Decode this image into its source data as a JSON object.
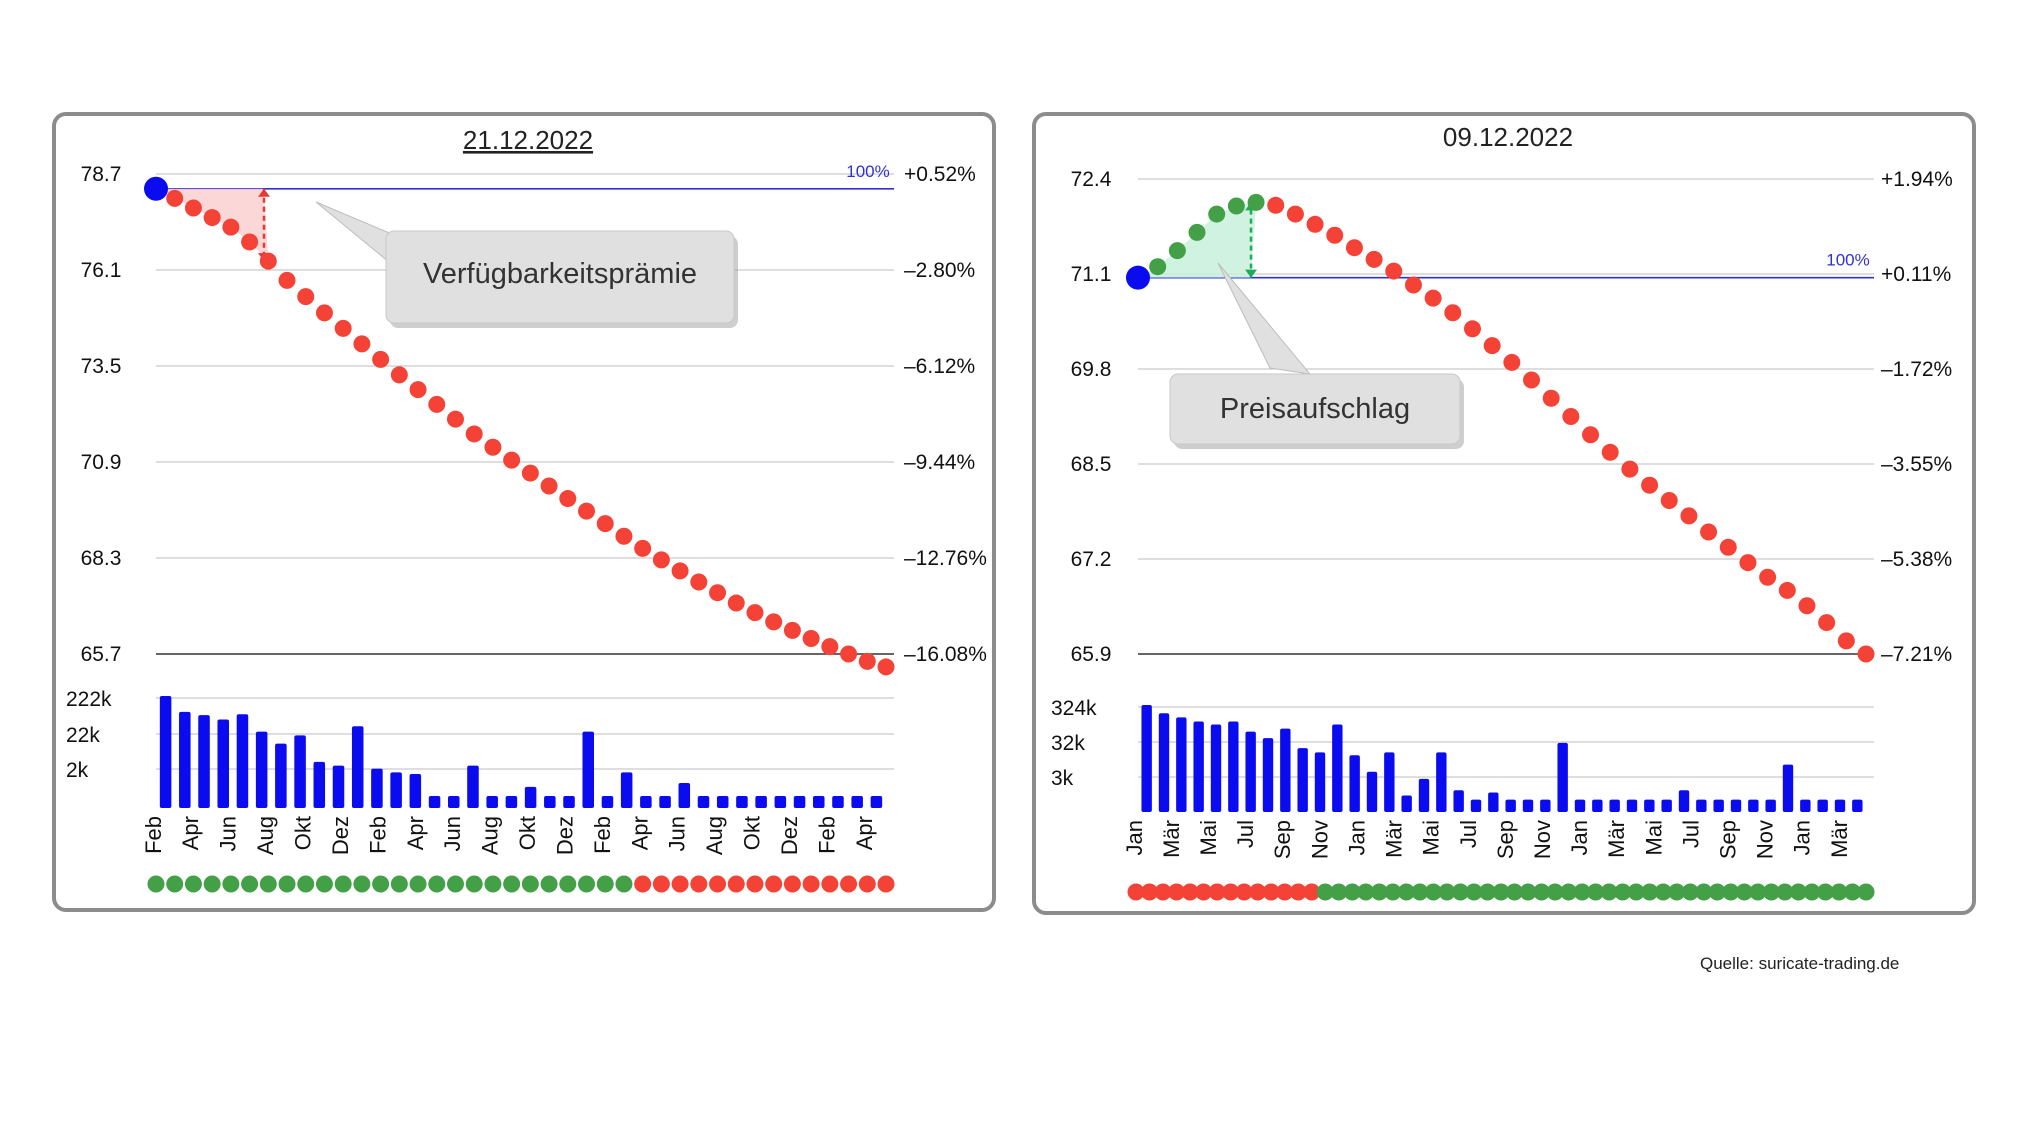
{
  "colors": {
    "dot_red": "#f44336",
    "dot_green": "#43a047",
    "bar_blue": "#0b0bf0",
    "start_blue": "#0b0bf0",
    "line_100": "#3030d8",
    "grid": "#bdbdbd",
    "callout_bg": "#e0e0e0",
    "premium_red_fill": "#fbd0d0",
    "premium_green_fill": "#c8f0dc"
  },
  "source": "Quelle: suricate-trading.de",
  "chart_data": [
    {
      "type": "line",
      "title": "21.12.2022",
      "y_ticks_left": [
        "78.7",
        "76.1",
        "73.5",
        "70.9",
        "68.3",
        "65.7"
      ],
      "y_ticks_left_values": [
        78.7,
        76.1,
        73.5,
        70.9,
        68.3,
        65.7
      ],
      "y_ticks_right": [
        "+0.52%",
        "–2.80%",
        "–6.12%",
        "–9.44%",
        "–12.76%",
        "–16.08%"
      ],
      "ylim": [
        65.7,
        78.7
      ],
      "reference_label": "100%",
      "reference_value": 78.3,
      "annotation": "Verfügbarkeitsprämie",
      "x_tick_labels": [
        "Feb",
        "Apr",
        "Jun",
        "Aug",
        "Okt",
        "Dez",
        "Feb",
        "Apr",
        "Jun",
        "Aug",
        "Okt",
        "Dez",
        "Feb",
        "Apr",
        "Jun",
        "Aug",
        "Okt",
        "Dez",
        "Feb",
        "Apr"
      ],
      "curve": [
        78.3,
        78.04,
        77.78,
        77.52,
        77.26,
        76.86,
        76.34,
        75.82,
        75.38,
        74.94,
        74.52,
        74.1,
        73.68,
        73.26,
        72.86,
        72.46,
        72.06,
        71.66,
        71.3,
        70.95,
        70.6,
        70.25,
        69.91,
        69.57,
        69.23,
        68.89,
        68.56,
        68.25,
        67.95,
        67.65,
        67.36,
        67.08,
        66.82,
        66.57,
        66.34,
        66.12,
        65.9,
        65.7,
        65.5,
        65.35
      ],
      "curve_colors": [
        "blue",
        "red",
        "red",
        "red",
        "red",
        "red",
        "red",
        "red",
        "red",
        "red",
        "red",
        "red",
        "red",
        "red",
        "red",
        "red",
        "red",
        "red",
        "red",
        "red",
        "red",
        "red",
        "red",
        "red",
        "red",
        "red",
        "red",
        "red",
        "red",
        "red",
        "red",
        "red",
        "red",
        "red",
        "red",
        "red",
        "red",
        "red",
        "red",
        "red"
      ],
      "volume_ticks": [
        "222k",
        "22k",
        "2k"
      ],
      "volumes": [
        300000,
        90000,
        70000,
        50000,
        75000,
        20000,
        8000,
        15000,
        2000,
        1500,
        30000,
        1200,
        900,
        800,
        150,
        150,
        1500,
        150,
        150,
        300,
        150,
        150,
        20000,
        150,
        900,
        150,
        150,
        400,
        150,
        150,
        150,
        150,
        150,
        150,
        150,
        150,
        150,
        150
      ],
      "status_dots": [
        "green",
        "green",
        "green",
        "green",
        "green",
        "green",
        "green",
        "green",
        "green",
        "green",
        "green",
        "green",
        "green",
        "green",
        "green",
        "green",
        "green",
        "green",
        "green",
        "green",
        "green",
        "green",
        "green",
        "green",
        "green",
        "green",
        "red",
        "red",
        "red",
        "red",
        "red",
        "red",
        "red",
        "red",
        "red",
        "red",
        "red",
        "red",
        "red",
        "red"
      ]
    },
    {
      "type": "line",
      "title": "09.12.2022",
      "y_ticks_left": [
        "72.4",
        "71.1",
        "69.8",
        "68.5",
        "67.2",
        "65.9"
      ],
      "y_ticks_left_values": [
        72.4,
        71.1,
        69.8,
        68.5,
        67.2,
        65.9
      ],
      "y_ticks_right": [
        "+1.94%",
        "+0.11%",
        "–1.72%",
        "–3.55%",
        "–5.38%",
        "–7.21%"
      ],
      "ylim": [
        65.9,
        72.4
      ],
      "reference_label": "100%",
      "reference_value": 71.05,
      "annotation": "Preisaufschlag",
      "x_tick_labels": [
        "Jan",
        "Mär",
        "Mai",
        "Jul",
        "Sep",
        "Nov",
        "Jan",
        "Mär",
        "Mai",
        "Jul",
        "Sep",
        "Nov",
        "Jan",
        "Mär",
        "Mai",
        "Jul",
        "Sep",
        "Nov",
        "Jan",
        "Mär"
      ],
      "curve": [
        71.05,
        71.2,
        71.42,
        71.67,
        71.92,
        72.03,
        72.08,
        72.04,
        71.92,
        71.78,
        71.63,
        71.46,
        71.3,
        71.14,
        70.95,
        70.77,
        70.57,
        70.35,
        70.12,
        69.89,
        69.65,
        69.4,
        69.15,
        68.9,
        68.66,
        68.43,
        68.21,
        68.0,
        67.79,
        67.57,
        67.36,
        67.15,
        66.95,
        66.77,
        66.56,
        66.33,
        66.08,
        65.9
      ],
      "curve_colors": [
        "blue",
        "green",
        "green",
        "green",
        "green",
        "green",
        "green",
        "red",
        "red",
        "red",
        "red",
        "red",
        "red",
        "red",
        "red",
        "red",
        "red",
        "red",
        "red",
        "red",
        "red",
        "red",
        "red",
        "red",
        "red",
        "red",
        "red",
        "red",
        "red",
        "red",
        "red",
        "red",
        "red",
        "red",
        "red",
        "red",
        "red",
        "red"
      ],
      "volume_ticks": [
        "324k",
        "32k",
        "3k"
      ],
      "volumes": [
        2000000,
        900000,
        600000,
        400000,
        300000,
        400000,
        150000,
        80000,
        200000,
        30000,
        20000,
        300000,
        15000,
        3000,
        20000,
        300,
        1500,
        20000,
        500,
        200,
        400,
        200,
        200,
        200,
        50000,
        200,
        200,
        200,
        200,
        200,
        200,
        500,
        200,
        200,
        200,
        200,
        200,
        6000,
        200,
        200,
        200,
        200
      ],
      "status_dots": [
        "red",
        "red",
        "red",
        "red",
        "red",
        "red",
        "red",
        "red",
        "red",
        "red",
        "red",
        "red",
        "red",
        "red",
        "green",
        "green",
        "green",
        "green",
        "green",
        "green",
        "green",
        "green",
        "green",
        "green",
        "green",
        "green",
        "green",
        "green",
        "green",
        "green",
        "green",
        "green",
        "green",
        "green",
        "green",
        "green",
        "green",
        "green",
        "green",
        "green",
        "green",
        "green",
        "green",
        "green",
        "green",
        "green",
        "green",
        "green",
        "green",
        "green",
        "green",
        "green",
        "green",
        "green",
        "green"
      ]
    }
  ]
}
